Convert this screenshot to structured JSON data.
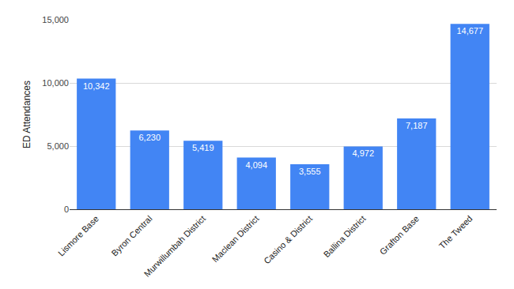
{
  "chart_data": {
    "type": "bar",
    "y_label": "ED Attendances",
    "categories": [
      "Lismore Base",
      "Byron Central",
      "Murwillumbah District",
      "Maclean District",
      "Casino & District",
      "Ballina District",
      "Grafton Base",
      "The Tweed"
    ],
    "values": [
      10342,
      6230,
      5419,
      4094,
      3555,
      4972,
      7187,
      14677
    ],
    "value_labels": [
      "10,342",
      "6,230",
      "5,419",
      "4,094",
      "3,555",
      "4,972",
      "7,187",
      "14,677"
    ],
    "color": "#4285f4",
    "ylim": [
      0,
      15000
    ],
    "yticks": [
      0,
      {
        "value": 5000,
        "label": "5,000"
      },
      {
        "value": 10000,
        "label": "10,000"
      },
      {
        "value": 15000,
        "label": "15,000"
      }
    ],
    "grid": true,
    "data_labels": true
  }
}
